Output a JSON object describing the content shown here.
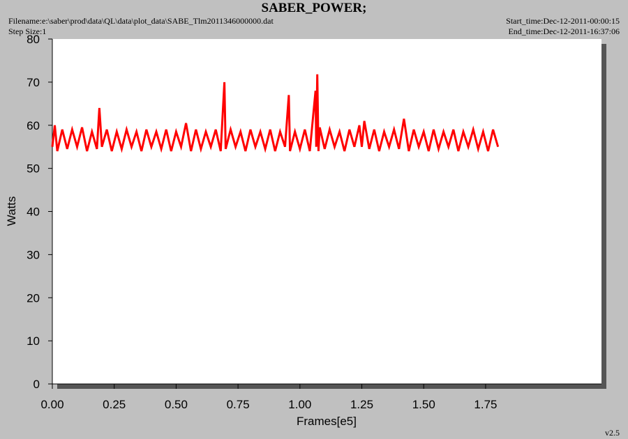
{
  "chart_data": {
    "type": "line",
    "title": "SABER_POWER;",
    "filename": "Filename:e:\\saber\\prod\\data\\QL\\data\\plot_data\\SABE_Tlm2011346000000.dat",
    "step_size": "Step Size:1",
    "start_time": "Start_time:Dec-12-2011-00:00:15",
    "end_time": "End_time:Dec-12-2011-16:37:06",
    "version": "v2.5",
    "xlabel": "Frames[e5]",
    "ylabel": "Watts",
    "color": "#ff0000",
    "xlim": [
      0,
      2.218
    ],
    "xticks": [
      {
        "value": 0,
        "label": "0.00"
      },
      0.25,
      {
        "value": 0.5,
        "label": "0.50"
      },
      0.75,
      {
        "value": 1,
        "label": "1.00"
      },
      1.25,
      {
        "value": 1.5,
        "label": "1.50"
      },
      1.75
    ],
    "ylim": [
      0,
      80
    ],
    "yticks": [
      0,
      10,
      20,
      30,
      40,
      50,
      60,
      70,
      80
    ],
    "x": [
      0,
      0.01,
      0.02,
      0.04,
      0.06,
      0.08,
      0.1,
      0.12,
      0.14,
      0.16,
      0.18,
      0.19,
      0.2,
      0.22,
      0.24,
      0.26,
      0.28,
      0.3,
      0.32,
      0.34,
      0.36,
      0.38,
      0.4,
      0.42,
      0.44,
      0.46,
      0.48,
      0.5,
      0.52,
      0.54,
      0.56,
      0.58,
      0.6,
      0.62,
      0.64,
      0.66,
      0.68,
      0.695,
      0.7,
      0.72,
      0.74,
      0.76,
      0.78,
      0.8,
      0.82,
      0.84,
      0.86,
      0.88,
      0.9,
      0.92,
      0.94,
      0.955,
      0.96,
      0.98,
      1.0,
      1.02,
      1.04,
      1.063,
      1.066,
      1.07,
      1.075,
      1.08,
      1.1,
      1.12,
      1.14,
      1.16,
      1.18,
      1.2,
      1.22,
      1.24,
      1.25,
      1.26,
      1.28,
      1.3,
      1.32,
      1.34,
      1.36,
      1.38,
      1.4,
      1.42,
      1.44,
      1.46,
      1.48,
      1.5,
      1.52,
      1.54,
      1.56,
      1.58,
      1.6,
      1.62,
      1.64,
      1.66,
      1.68,
      1.7,
      1.72,
      1.74,
      1.76,
      1.78,
      1.8
    ],
    "values": [
      55,
      60,
      54,
      59,
      54.5,
      59,
      55,
      59.5,
      54,
      58.5,
      54.5,
      64,
      55,
      59,
      54,
      58.5,
      54.5,
      59,
      55,
      58.5,
      54,
      59,
      55,
      58.5,
      54.5,
      59,
      54,
      58.5,
      55,
      60.5,
      54,
      59,
      54.5,
      58.5,
      55,
      59,
      54,
      70,
      54.5,
      59,
      55,
      58.5,
      54,
      59,
      55,
      58.5,
      54.5,
      59,
      54,
      58.5,
      55,
      67,
      54,
      58.5,
      54.5,
      59,
      54,
      68,
      55,
      71.8,
      54,
      59.5,
      54.5,
      59,
      55,
      58.5,
      54,
      59,
      55,
      60,
      55,
      61,
      54.5,
      59,
      54,
      58.5,
      55,
      59,
      54.5,
      61.5,
      54,
      59,
      55,
      58.5,
      54,
      59,
      54.5,
      58.5,
      55,
      59,
      54,
      58.5,
      55,
      59,
      54.5,
      58.5,
      54,
      59,
      55
    ]
  }
}
